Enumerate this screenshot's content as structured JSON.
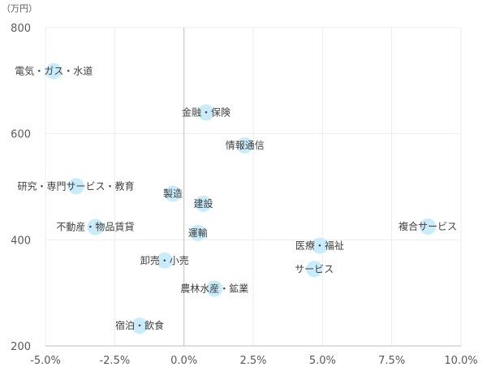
{
  "chart_data": {
    "type": "scatter",
    "title": "",
    "xlabel": "",
    "ylabel": "",
    "y_unit_label": "（万円）",
    "xlim": [
      -5.0,
      10.0
    ],
    "ylim": [
      200,
      800
    ],
    "x_ticks": [
      "-5.0%",
      "-2.5%",
      "0.0%",
      "2.5%",
      "5.0%",
      "7.5%",
      "10.0%"
    ],
    "y_ticks": [
      "200",
      "400",
      "600",
      "800"
    ],
    "grid": true,
    "legend": "none",
    "marker_color": "#c9ecfb",
    "points": [
      {
        "label": "電気・ガス・水道",
        "x": -4.7,
        "y": 718
      },
      {
        "label": "金融・保険",
        "x": 0.8,
        "y": 640
      },
      {
        "label": "情報通信",
        "x": 2.2,
        "y": 578
      },
      {
        "label": "研究・専門サービス・教育",
        "x": -3.9,
        "y": 501
      },
      {
        "label": "製造",
        "x": -0.4,
        "y": 487
      },
      {
        "label": "建設",
        "x": 0.7,
        "y": 468
      },
      {
        "label": "不動産・物品賃貸",
        "x": -3.2,
        "y": 424
      },
      {
        "label": "運輸",
        "x": 0.5,
        "y": 413
      },
      {
        "label": "複合サービス",
        "x": 8.8,
        "y": 425
      },
      {
        "label": "医療・福祉",
        "x": 4.9,
        "y": 389
      },
      {
        "label": "卸売・小売",
        "x": -0.7,
        "y": 361
      },
      {
        "label": "サービス",
        "x": 4.7,
        "y": 345
      },
      {
        "label": "農林水産・鉱業",
        "x": 1.1,
        "y": 308
      },
      {
        "label": "宿泊・飲食",
        "x": -1.6,
        "y": 238
      }
    ]
  }
}
